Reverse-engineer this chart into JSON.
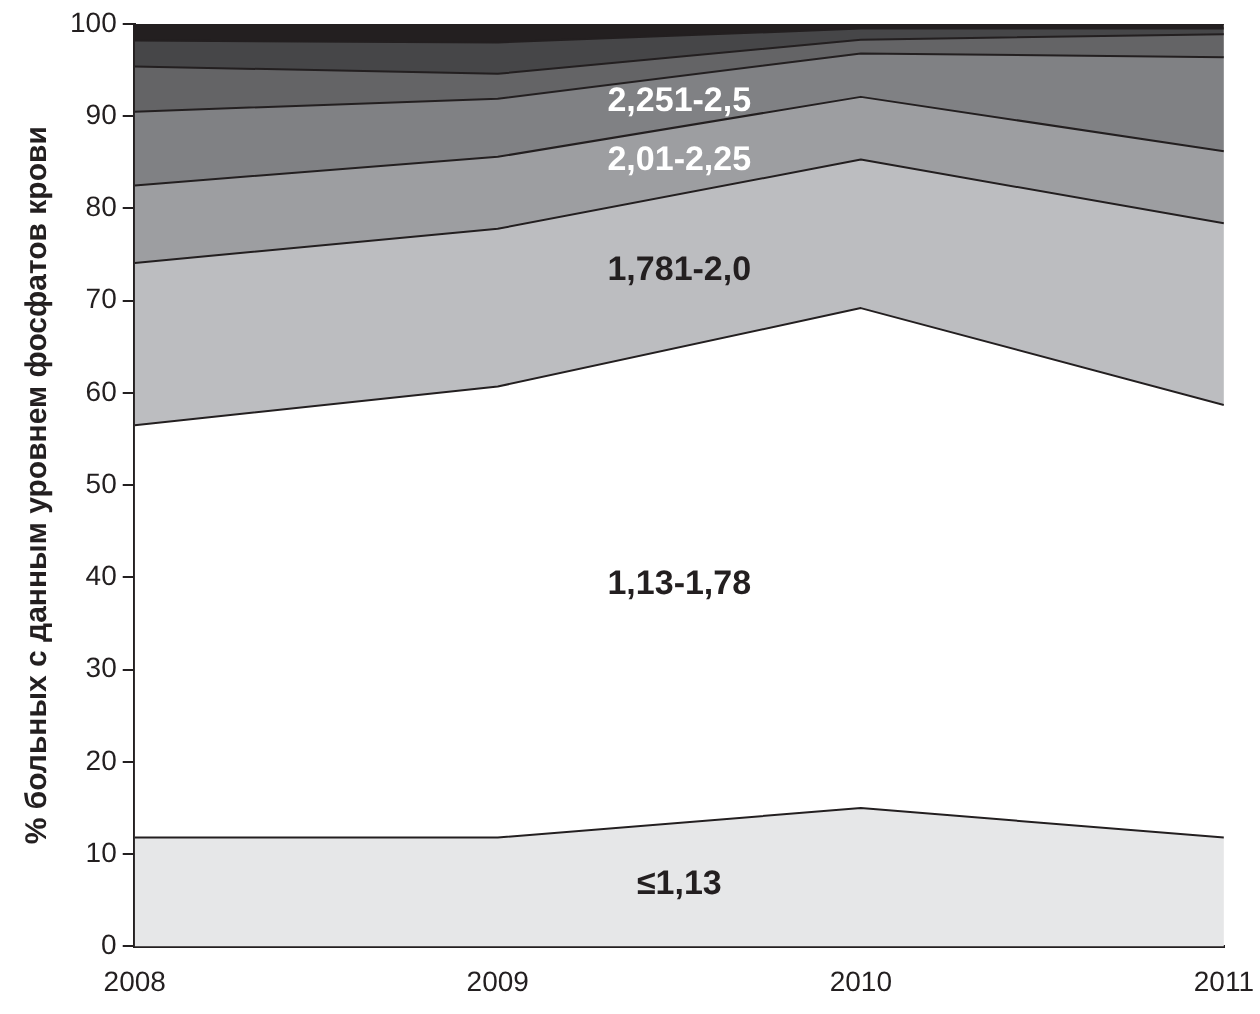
{
  "chart_data": {
    "type": "area",
    "ylabel": "% больных с данным уровнем фосфатов крови",
    "x": [
      2008,
      2009,
      2010,
      2011
    ],
    "xlim": [
      2008,
      2011
    ],
    "xticks": [
      2008,
      2009,
      2010,
      2011
    ],
    "ylim": [
      0,
      100
    ],
    "yticks": [
      0,
      10,
      20,
      30,
      40,
      50,
      60,
      70,
      80,
      90,
      100
    ],
    "stacked": true,
    "grid": false,
    "legend": false,
    "series": [
      {
        "name": "≤1,13",
        "color": "#e6e7e8",
        "values": [
          11.8,
          11.8,
          15,
          11.8
        ]
      },
      {
        "name": "1,13-1,78",
        "color": "#ffffff",
        "values": [
          44.7,
          48.9,
          54.2,
          46.9
        ]
      },
      {
        "name": "1,781-2,0",
        "color": "#bcbdc0",
        "values": [
          17.6,
          17.1,
          16.1,
          19.7
        ]
      },
      {
        "name": "2,01-2,25",
        "color": "#9d9ea1",
        "values": [
          8.4,
          7.8,
          6.8,
          7.8
        ]
      },
      {
        "name": "2,251-2,5",
        "color": "#808184",
        "values": [
          8.0,
          6.3,
          4.7,
          10.2
        ]
      },
      {
        "color": "#646466",
        "values": [
          4.9,
          2.7,
          1.5,
          2.5
        ]
      },
      {
        "color": "#464648",
        "values": [
          2.8,
          3.4,
          1.2,
          0.6
        ]
      },
      {
        "color": "#231f20",
        "values": [
          1.8,
          2.0,
          0.5,
          0.5
        ]
      }
    ]
  }
}
